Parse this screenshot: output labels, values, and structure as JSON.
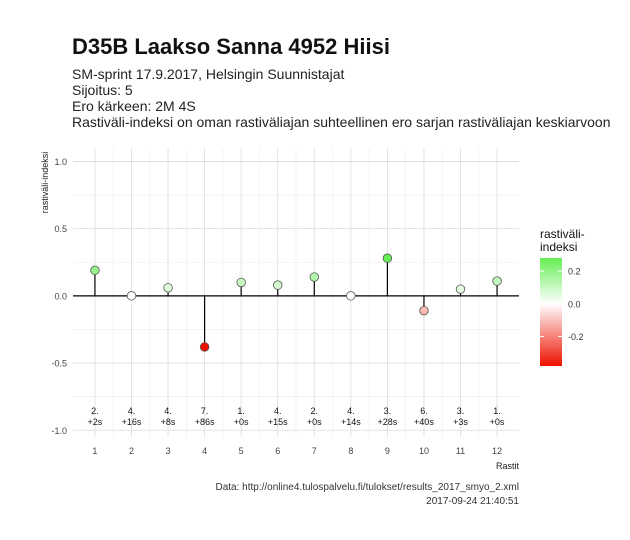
{
  "header": {
    "title": "D35B Laakso Sanna 4952 Hiisi",
    "subtitle_lines": [
      "SM-sprint 17.9.2017, Helsingin Suunnistajat",
      "Sijoitus: 5",
      "Ero kärkeen: 2M 4S",
      "Rastiväli-indeksi on oman rastiväliajan suhteellinen ero sarjan rastiväliajan keskiarvoon"
    ]
  },
  "caption": {
    "line1": "Data: http://online4.tulospalvelu.fi/tulokset/results_2017_smyo_2.xml",
    "line2": "2017-09-24 21:40:51"
  },
  "colors": {
    "high": "#66ee55",
    "mid": "#ffffff",
    "low": "#ee1100",
    "stem": "#000000",
    "grid": "#dcdcdc"
  },
  "chart_data": {
    "type": "scatter",
    "style": "lollipop",
    "xlabel": "Rastit",
    "ylabel": "rastiväli-indeksi",
    "x": [
      1,
      2,
      3,
      4,
      5,
      6,
      7,
      8,
      9,
      10,
      11,
      12
    ],
    "y": [
      0.19,
      0.0,
      0.06,
      -0.38,
      0.1,
      0.08,
      0.14,
      0.0,
      0.28,
      -0.11,
      0.05,
      0.11
    ],
    "ylim": [
      -1.05,
      1.1
    ],
    "xlim": [
      0.4,
      12.6
    ],
    "yticks": [
      -1.0,
      -0.5,
      0.0,
      0.5,
      1.0
    ],
    "ytick_labels": [
      "-1.0",
      "-0.5",
      "0.0",
      "0.5",
      "1.0"
    ],
    "xtick_labels": [
      "1",
      "2",
      "3",
      "4",
      "5",
      "6",
      "7",
      "8",
      "9",
      "10",
      "11",
      "12"
    ],
    "annotations": [
      {
        "rank": "2.",
        "diff": "+2s"
      },
      {
        "rank": "4.",
        "diff": "+16s"
      },
      {
        "rank": "4.",
        "diff": "+8s"
      },
      {
        "rank": "7.",
        "diff": "+86s"
      },
      {
        "rank": "1.",
        "diff": "+0s"
      },
      {
        "rank": "4.",
        "diff": "+15s"
      },
      {
        "rank": "2.",
        "diff": "+0s"
      },
      {
        "rank": "4.",
        "diff": "+14s"
      },
      {
        "rank": "3.",
        "diff": "+28s"
      },
      {
        "rank": "6.",
        "diff": "+40s"
      },
      {
        "rank": "3.",
        "diff": "+3s"
      },
      {
        "rank": "1.",
        "diff": "+0s"
      }
    ],
    "legend": {
      "title_lines": [
        "rastiväli-",
        "indeksi"
      ],
      "placement": "right",
      "range": [
        -0.38,
        0.28
      ],
      "ticks": [
        0.2,
        0.0,
        -0.2
      ],
      "tick_labels": [
        "0.2",
        "0.0",
        "-0.2"
      ]
    },
    "grid": true
  }
}
